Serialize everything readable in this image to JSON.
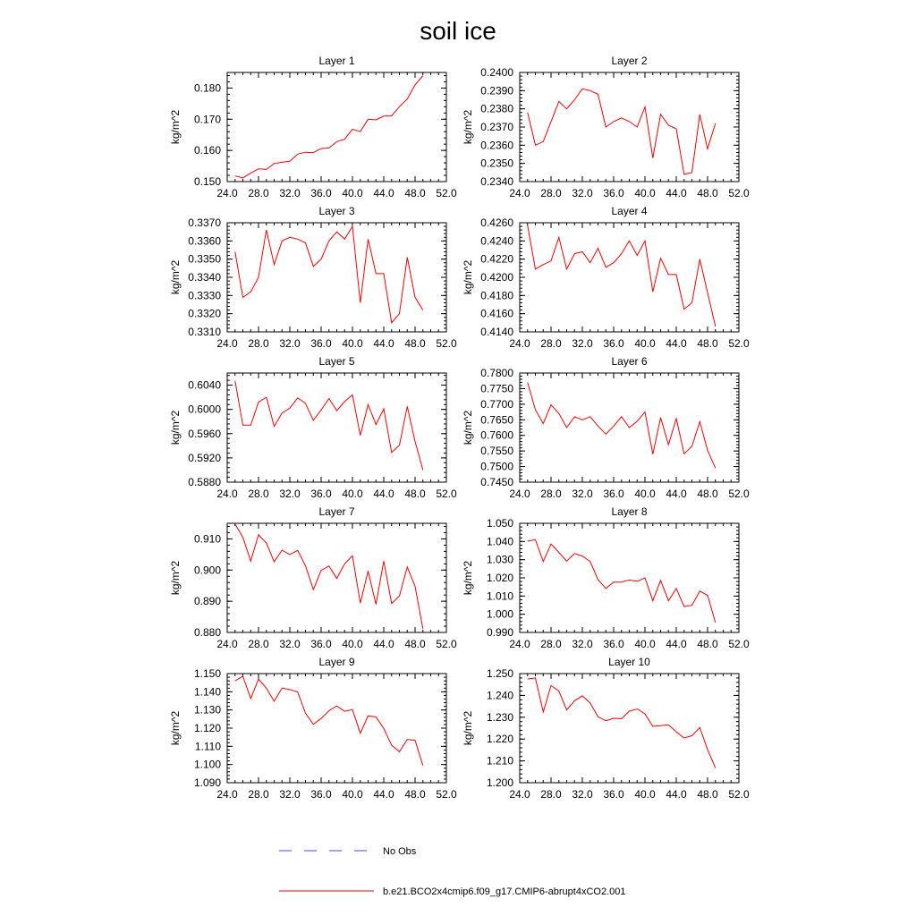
{
  "figure": {
    "title": "soil ice",
    "line_color": "#ff0000",
    "obs_color": "#4a4aff"
  },
  "legend": [
    {
      "label": "No Obs",
      "style": "dashed",
      "color": "#4a4aff"
    },
    {
      "label": "b.e21.BCO2x4cmip6.f09_g17.CMIP6-abrupt4xCO2.001",
      "style": "solid",
      "color": "#ff0000"
    }
  ],
  "chart_data": [
    {
      "type": "line",
      "title": "Layer 1",
      "ylabel": "kg/m^2",
      "xlim": [
        24,
        52
      ],
      "ylim": [
        0.15,
        0.185
      ],
      "xticks": [
        "24.0",
        "28.0",
        "32.0",
        "36.0",
        "40.0",
        "44.0",
        "48.0",
        "52.0"
      ],
      "yticks": [
        0.15,
        0.16,
        0.17,
        0.18
      ],
      "ytick_labels": [
        "0.150",
        "0.160",
        "0.170",
        "0.180"
      ],
      "x": [
        25,
        26,
        27,
        28,
        29,
        30,
        31,
        32,
        33,
        34,
        35,
        36,
        37,
        38,
        39,
        40,
        41,
        42,
        43,
        44,
        45,
        46,
        47,
        48,
        49
      ],
      "series": [
        {
          "name": "b.e21.BCO2x4cmip6.f09_g17.CMIP6-abrupt4xCO2.001",
          "values": [
            0.1518,
            0.1512,
            0.1527,
            0.1541,
            0.1539,
            0.1558,
            0.1562,
            0.1565,
            0.1588,
            0.1594,
            0.1593,
            0.1606,
            0.1608,
            0.1628,
            0.1636,
            0.1668,
            0.166,
            0.17,
            0.1698,
            0.171,
            0.1711,
            0.174,
            0.1765,
            0.181,
            0.184
          ]
        }
      ]
    },
    {
      "type": "line",
      "title": "Layer 2",
      "ylabel": "kg/m^2",
      "xlim": [
        24,
        52
      ],
      "ylim": [
        0.234,
        0.24
      ],
      "xticks": [
        "24.0",
        "28.0",
        "32.0",
        "36.0",
        "40.0",
        "44.0",
        "48.0",
        "52.0"
      ],
      "yticks": [
        0.234,
        0.235,
        0.236,
        0.237,
        0.238,
        0.239,
        0.24
      ],
      "ytick_labels": [
        "0.2340",
        "0.2350",
        "0.2360",
        "0.2370",
        "0.2380",
        "0.2390",
        "0.2400"
      ],
      "x": [
        25,
        26,
        27,
        28,
        29,
        30,
        31,
        32,
        33,
        34,
        35,
        36,
        37,
        38,
        39,
        40,
        41,
        42,
        43,
        44,
        45,
        46,
        47,
        48,
        49
      ],
      "series": [
        {
          "name": "b.e21.BCO2x4cmip6.f09_g17.CMIP6-abrupt4xCO2.001",
          "values": [
            0.2378,
            0.236,
            0.2362,
            0.2373,
            0.2384,
            0.238,
            0.2385,
            0.2391,
            0.239,
            0.2388,
            0.237,
            0.2373,
            0.2375,
            0.2373,
            0.237,
            0.2381,
            0.2353,
            0.2377,
            0.2371,
            0.2369,
            0.2344,
            0.2345,
            0.2377,
            0.2358,
            0.2372
          ]
        }
      ]
    },
    {
      "type": "line",
      "title": "Layer 3",
      "ylabel": "kg/m^2",
      "xlim": [
        24,
        52
      ],
      "ylim": [
        0.331,
        0.337
      ],
      "xticks": [
        "24.0",
        "28.0",
        "32.0",
        "36.0",
        "40.0",
        "44.0",
        "48.0",
        "52.0"
      ],
      "yticks": [
        0.331,
        0.332,
        0.333,
        0.334,
        0.335,
        0.336,
        0.337
      ],
      "ytick_labels": [
        "0.3310",
        "0.3320",
        "0.3330",
        "0.3340",
        "0.3350",
        "0.3360",
        "0.3370"
      ],
      "x": [
        25,
        26,
        27,
        28,
        29,
        30,
        31,
        32,
        33,
        34,
        35,
        36,
        37,
        38,
        39,
        40,
        41,
        42,
        43,
        44,
        45,
        46,
        47,
        48,
        49
      ],
      "series": [
        {
          "name": "b.e21.BCO2x4cmip6.f09_g17.CMIP6-abrupt4xCO2.001",
          "values": [
            0.3354,
            0.3329,
            0.3332,
            0.334,
            0.3366,
            0.3347,
            0.336,
            0.3362,
            0.3361,
            0.3359,
            0.3346,
            0.335,
            0.336,
            0.3365,
            0.3361,
            0.3368,
            0.3326,
            0.3361,
            0.3342,
            0.3342,
            0.3315,
            0.332,
            0.3351,
            0.3329,
            0.3322
          ]
        }
      ]
    },
    {
      "type": "line",
      "title": "Layer 4",
      "ylabel": "kg/m^2",
      "xlim": [
        24,
        52
      ],
      "ylim": [
        0.414,
        0.426
      ],
      "xticks": [
        "24.0",
        "28.0",
        "32.0",
        "36.0",
        "40.0",
        "44.0",
        "48.0",
        "52.0"
      ],
      "yticks": [
        0.414,
        0.416,
        0.418,
        0.42,
        0.422,
        0.424,
        0.426
      ],
      "ytick_labels": [
        "0.4140",
        "0.4160",
        "0.4180",
        "0.4200",
        "0.4220",
        "0.4240",
        "0.4260"
      ],
      "x": [
        25,
        26,
        27,
        28,
        29,
        30,
        31,
        32,
        33,
        34,
        35,
        36,
        37,
        38,
        39,
        40,
        41,
        42,
        43,
        44,
        45,
        46,
        47,
        48,
        49
      ],
      "series": [
        {
          "name": "b.e21.BCO2x4cmip6.f09_g17.CMIP6-abrupt4xCO2.001",
          "values": [
            0.4257,
            0.4209,
            0.4214,
            0.4218,
            0.4244,
            0.4209,
            0.4226,
            0.4228,
            0.4216,
            0.4232,
            0.4211,
            0.4216,
            0.4226,
            0.424,
            0.4224,
            0.424,
            0.4184,
            0.4221,
            0.4203,
            0.4203,
            0.4165,
            0.4172,
            0.422,
            0.4183,
            0.4146
          ]
        }
      ]
    },
    {
      "type": "line",
      "title": "Layer 5",
      "ylabel": "kg/m^2",
      "xlim": [
        24,
        52
      ],
      "ylim": [
        0.588,
        0.606
      ],
      "xticks": [
        "24.0",
        "28.0",
        "32.0",
        "36.0",
        "40.0",
        "44.0",
        "48.0",
        "52.0"
      ],
      "yticks": [
        0.588,
        0.592,
        0.596,
        0.6,
        0.604
      ],
      "ytick_labels": [
        "0.5880",
        "0.5920",
        "0.5960",
        "0.6000",
        "0.6040"
      ],
      "x": [
        25,
        26,
        27,
        28,
        29,
        30,
        31,
        32,
        33,
        34,
        35,
        36,
        37,
        38,
        39,
        40,
        41,
        42,
        43,
        44,
        45,
        46,
        47,
        48,
        49
      ],
      "series": [
        {
          "name": "b.e21.BCO2x4cmip6.f09_g17.CMIP6-abrupt4xCO2.001",
          "values": [
            0.6047,
            0.5974,
            0.5974,
            0.6012,
            0.602,
            0.5972,
            0.5994,
            0.6002,
            0.6019,
            0.601,
            0.5982,
            0.5999,
            0.6018,
            0.5998,
            0.6013,
            0.6024,
            0.5957,
            0.6008,
            0.5975,
            0.6001,
            0.5929,
            0.5941,
            0.6005,
            0.5947,
            0.59
          ]
        }
      ]
    },
    {
      "type": "line",
      "title": "Layer 6",
      "ylabel": "kg/m^2",
      "xlim": [
        24,
        52
      ],
      "ylim": [
        0.745,
        0.78
      ],
      "xticks": [
        "24.0",
        "28.0",
        "32.0",
        "36.0",
        "40.0",
        "44.0",
        "48.0",
        "52.0"
      ],
      "yticks": [
        0.745,
        0.75,
        0.755,
        0.76,
        0.765,
        0.77,
        0.775,
        0.78
      ],
      "ytick_labels": [
        "0.7450",
        "0.7500",
        "0.7550",
        "0.7600",
        "0.7650",
        "0.7700",
        "0.7750",
        "0.7800"
      ],
      "x": [
        25,
        26,
        27,
        28,
        29,
        30,
        31,
        32,
        33,
        34,
        35,
        36,
        37,
        38,
        39,
        40,
        41,
        42,
        43,
        44,
        45,
        46,
        47,
        48,
        49
      ],
      "series": [
        {
          "name": "b.e21.BCO2x4cmip6.f09_g17.CMIP6-abrupt4xCO2.001",
          "values": [
            0.777,
            0.7682,
            0.7638,
            0.7698,
            0.767,
            0.7625,
            0.766,
            0.765,
            0.766,
            0.763,
            0.7604,
            0.763,
            0.766,
            0.7625,
            0.7645,
            0.7675,
            0.754,
            0.7657,
            0.757,
            0.7654,
            0.7541,
            0.7565,
            0.7644,
            0.7552,
            0.7495
          ]
        }
      ]
    },
    {
      "type": "line",
      "title": "Layer 7",
      "ylabel": "kg/m^2",
      "xlim": [
        24,
        52
      ],
      "ylim": [
        0.88,
        0.915
      ],
      "xticks": [
        "24.0",
        "28.0",
        "32.0",
        "36.0",
        "40.0",
        "44.0",
        "48.0",
        "52.0"
      ],
      "yticks": [
        0.88,
        0.89,
        0.9,
        0.91
      ],
      "ytick_labels": [
        "0.880",
        "0.890",
        "0.900",
        "0.910"
      ],
      "x": [
        25,
        26,
        27,
        28,
        29,
        30,
        31,
        32,
        33,
        34,
        35,
        36,
        37,
        38,
        39,
        40,
        41,
        42,
        43,
        44,
        45,
        46,
        47,
        48,
        49
      ],
      "series": [
        {
          "name": "b.e21.BCO2x4cmip6.f09_g17.CMIP6-abrupt4xCO2.001",
          "values": [
            0.9148,
            0.9105,
            0.9029,
            0.9113,
            0.9087,
            0.9027,
            0.9064,
            0.905,
            0.9063,
            0.9014,
            0.8937,
            0.8999,
            0.9013,
            0.8973,
            0.902,
            0.9046,
            0.8894,
            0.8997,
            0.889,
            0.9029,
            0.8893,
            0.8917,
            0.901,
            0.8948,
            0.8812
          ]
        }
      ]
    },
    {
      "type": "line",
      "title": "Layer 8",
      "ylabel": "kg/m^2",
      "xlim": [
        24,
        52
      ],
      "ylim": [
        0.99,
        1.05
      ],
      "xticks": [
        "24.0",
        "28.0",
        "32.0",
        "36.0",
        "40.0",
        "44.0",
        "48.0",
        "52.0"
      ],
      "yticks": [
        0.99,
        1.0,
        1.01,
        1.02,
        1.03,
        1.04,
        1.05
      ],
      "ytick_labels": [
        "0.990",
        "1.000",
        "1.010",
        "1.020",
        "1.030",
        "1.040",
        "1.050"
      ],
      "x": [
        25,
        26,
        27,
        28,
        29,
        30,
        31,
        32,
        33,
        34,
        35,
        36,
        37,
        38,
        39,
        40,
        41,
        42,
        43,
        44,
        45,
        46,
        47,
        48,
        49
      ],
      "series": [
        {
          "name": "b.e21.BCO2x4cmip6.f09_g17.CMIP6-abrupt4xCO2.001",
          "values": [
            1.0402,
            1.041,
            1.029,
            1.0386,
            1.034,
            1.0292,
            1.0334,
            1.032,
            1.029,
            1.019,
            1.0142,
            1.0177,
            1.0177,
            1.0188,
            1.0181,
            1.02,
            1.0074,
            1.0186,
            1.0074,
            1.0142,
            1.0042,
            1.0049,
            1.0127,
            1.0104,
            0.9954
          ]
        }
      ]
    },
    {
      "type": "line",
      "title": "Layer 9",
      "ylabel": "kg/m^2",
      "xlim": [
        24,
        52
      ],
      "ylim": [
        1.09,
        1.15
      ],
      "xticks": [
        "24.0",
        "28.0",
        "32.0",
        "36.0",
        "40.0",
        "44.0",
        "48.0",
        "52.0"
      ],
      "yticks": [
        1.09,
        1.1,
        1.11,
        1.12,
        1.13,
        1.14,
        1.15
      ],
      "ytick_labels": [
        "1.090",
        "1.100",
        "1.110",
        "1.120",
        "1.130",
        "1.140",
        "1.150"
      ],
      "x": [
        25,
        26,
        27,
        28,
        29,
        30,
        31,
        32,
        33,
        34,
        35,
        36,
        37,
        38,
        39,
        40,
        41,
        42,
        43,
        44,
        45,
        46,
        47,
        48,
        49
      ],
      "series": [
        {
          "name": "b.e21.BCO2x4cmip6.f09_g17.CMIP6-abrupt4xCO2.001",
          "values": [
            1.146,
            1.1485,
            1.1363,
            1.147,
            1.142,
            1.1348,
            1.142,
            1.1412,
            1.1398,
            1.1282,
            1.1221,
            1.1253,
            1.1296,
            1.1322,
            1.1293,
            1.1302,
            1.1172,
            1.1268,
            1.1262,
            1.1198,
            1.1106,
            1.107,
            1.1138,
            1.1133,
            1.0994
          ]
        }
      ]
    },
    {
      "type": "line",
      "title": "Layer 10",
      "ylabel": "kg/m^2",
      "xlim": [
        24,
        52
      ],
      "ylim": [
        1.2,
        1.25
      ],
      "xticks": [
        "24.0",
        "28.0",
        "32.0",
        "36.0",
        "40.0",
        "44.0",
        "48.0",
        "52.0"
      ],
      "yticks": [
        1.2,
        1.21,
        1.22,
        1.23,
        1.24,
        1.25
      ],
      "ytick_labels": [
        "1.200",
        "1.210",
        "1.220",
        "1.230",
        "1.240",
        "1.250"
      ],
      "x": [
        25,
        26,
        27,
        28,
        29,
        30,
        31,
        32,
        33,
        34,
        35,
        36,
        37,
        38,
        39,
        40,
        41,
        42,
        43,
        44,
        45,
        46,
        47,
        48,
        49
      ],
      "series": [
        {
          "name": "b.e21.BCO2x4cmip6.f09_g17.CMIP6-abrupt4xCO2.001",
          "values": [
            1.2475,
            1.248,
            1.2324,
            1.2445,
            1.242,
            1.2333,
            1.2376,
            1.2398,
            1.2365,
            1.2302,
            1.2284,
            1.2295,
            1.2293,
            1.2328,
            1.2338,
            1.2315,
            1.2258,
            1.2262,
            1.2265,
            1.2233,
            1.2205,
            1.2215,
            1.2253,
            1.2152,
            1.2068
          ]
        }
      ]
    }
  ]
}
